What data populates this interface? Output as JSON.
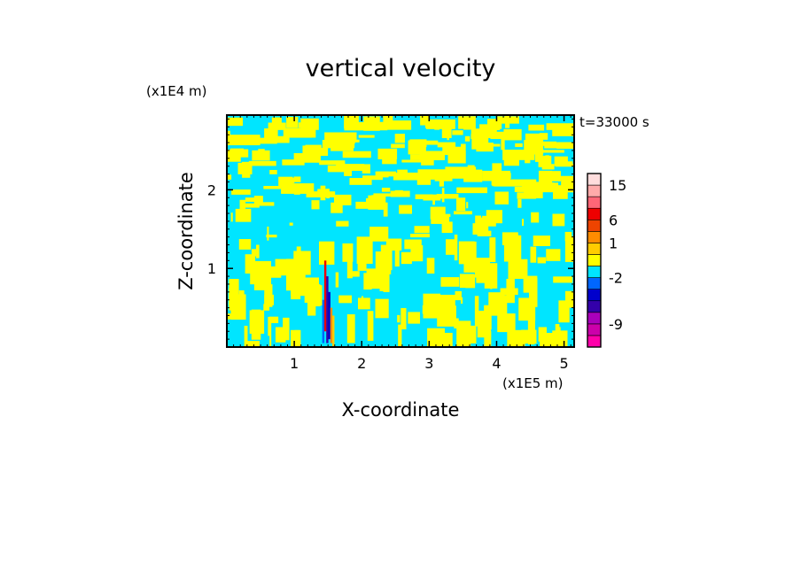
{
  "chart_data": {
    "type": "heatmap",
    "title": "vertical velocity",
    "xlabel": "X-coordinate",
    "ylabel": "Z-coordinate",
    "x_unit": "(x1E5 m)",
    "y_unit": "(x1E4 m)",
    "time_label": "t=33000 s",
    "xlim": [
      0,
      5.15
    ],
    "ylim": [
      0,
      2.95
    ],
    "x_ticks": [
      1,
      2,
      3,
      4,
      5
    ],
    "y_ticks": [
      1,
      2
    ],
    "grid": false,
    "legend_position": "right",
    "colorbar": {
      "labels": [
        {
          "text": "15",
          "level": 15
        },
        {
          "text": "6",
          "level": 6
        },
        {
          "text": "1",
          "level": 1
        },
        {
          "text": "-2",
          "level": -2
        },
        {
          "text": "-9",
          "level": -9
        }
      ],
      "colors": [
        "#ff00aa",
        "#cc00aa",
        "#aa00bb",
        "#3300aa",
        "#0000cc",
        "#0066ff",
        "#00e5ff",
        "#ffff00",
        "#ffcc00",
        "#ff8c00",
        "#ee4400",
        "#ee0000",
        "#ff6677",
        "#ffaaaa",
        "#ffdddd"
      ]
    },
    "dominant_colors": {
      "positive_weak": "#ffff00",
      "negative_weak": "#00e5ff"
    }
  }
}
